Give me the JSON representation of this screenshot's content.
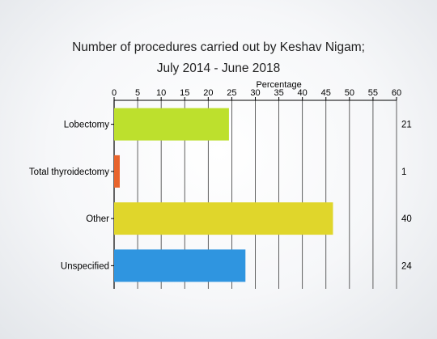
{
  "chart_data": {
    "type": "bar",
    "orientation": "horizontal",
    "title_line1": "Number of procedures carried out by Keshav Nigam;",
    "title_line2": "July 2014 - June 2018",
    "xlabel": "Percentage",
    "xlim": [
      0,
      60
    ],
    "xticks": [
      "0",
      "5",
      "10",
      "15",
      "20",
      "25",
      "30",
      "35",
      "40",
      "45",
      "50",
      "55",
      "60"
    ],
    "grid": true,
    "categories": [
      "Lobectomy",
      "Total thyroidectomy",
      "Other",
      "Unspecified"
    ],
    "values": [
      24.4,
      1.2,
      46.5,
      27.9
    ],
    "counts": [
      "21",
      "1",
      "40",
      "24"
    ],
    "colors": [
      "#bde02d",
      "#e8642c",
      "#e0d62b",
      "#2f95e0"
    ]
  }
}
